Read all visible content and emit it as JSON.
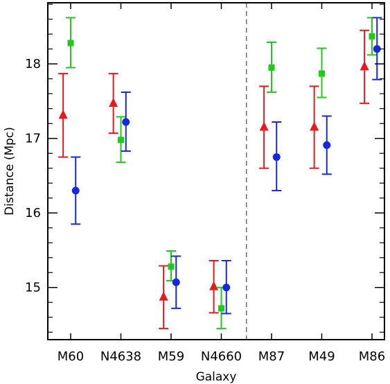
{
  "chart_data": {
    "type": "scatter",
    "xlabel": "Galaxy",
    "ylabel": "Distance (Mpc)",
    "categories": [
      "M60",
      "N4638",
      "M59",
      "N4660",
      "M87",
      "M49",
      "M86"
    ],
    "yticks": [
      15,
      16,
      17,
      18
    ],
    "ylim": [
      14.3,
      18.82
    ],
    "divider_after_category": 3,
    "grid": false,
    "series": [
      {
        "marker": "triangle",
        "color": "#e8191c",
        "offset": -0.15,
        "values": [
          17.31,
          17.47,
          14.87,
          15.01,
          17.15,
          17.15,
          17.96
        ],
        "err_low": [
          16.75,
          17.07,
          14.45,
          14.66,
          16.6,
          16.6,
          17.47
        ],
        "err_high": [
          17.87,
          17.87,
          15.29,
          15.36,
          17.7,
          17.7,
          18.45
        ]
      },
      {
        "marker": "square",
        "color": "#22c81e",
        "offset": 0.0,
        "values": [
          18.28,
          16.98,
          15.28,
          14.72,
          17.95,
          17.87,
          18.37
        ],
        "err_low": [
          17.95,
          16.68,
          15.09,
          14.45,
          17.62,
          17.55,
          18.12
        ],
        "err_high": [
          18.62,
          17.29,
          15.49,
          15.0,
          18.29,
          18.21,
          18.62
        ]
      },
      {
        "marker": "circle",
        "color": "#1428e0",
        "offset": 0.1,
        "values": [
          16.3,
          17.22,
          15.07,
          15.0,
          16.75,
          16.91,
          18.2
        ],
        "err_low": [
          15.85,
          16.83,
          14.72,
          14.65,
          16.3,
          16.52,
          17.79
        ],
        "err_high": [
          16.75,
          17.62,
          15.42,
          15.36,
          17.22,
          17.3,
          18.62
        ]
      }
    ]
  }
}
